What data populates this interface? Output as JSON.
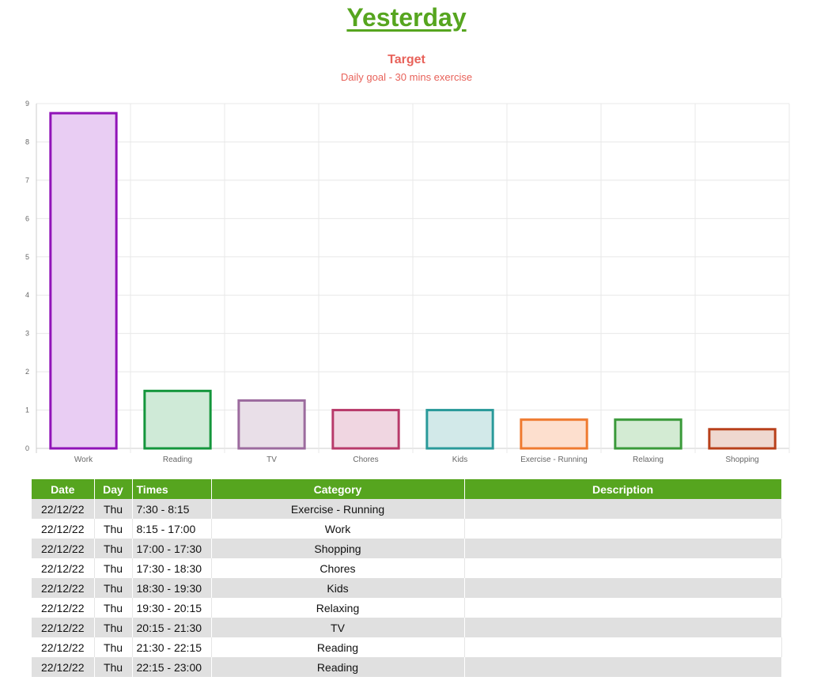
{
  "page": {
    "title": "Yesterday"
  },
  "chart_data": {
    "type": "bar",
    "title": "Target",
    "subtitle": "Daily goal - 30 mins exercise",
    "categories": [
      "Work",
      "Reading",
      "TV",
      "Chores",
      "Kids",
      "Exercise - Running",
      "Relaxing",
      "Shopping"
    ],
    "values": [
      8.75,
      1.5,
      1.25,
      1.0,
      1.0,
      0.75,
      0.75,
      0.5
    ],
    "ylim": [
      0,
      9
    ],
    "yticks": [
      0,
      1,
      2,
      3,
      4,
      5,
      6,
      7,
      8,
      9
    ],
    "grid": true,
    "legend": "none",
    "colors": {
      "border": [
        "#9013b8",
        "#14963c",
        "#9c6b9e",
        "#b83a6a",
        "#2a9a9a",
        "#ef7a30",
        "#3a9a3a",
        "#b8401a"
      ],
      "fill": [
        "#e9cdf3",
        "#cfead7",
        "#e9dfe8",
        "#f0d6e1",
        "#d2e9e9",
        "#fddfce",
        "#d3ebd3",
        "#efd8d0"
      ]
    }
  },
  "table": {
    "headers": [
      "Date",
      "Day",
      "Times",
      "Category",
      "Description"
    ],
    "rows": [
      [
        "22/12/22",
        "Thu",
        "7:30 - 8:15",
        "Exercise - Running",
        ""
      ],
      [
        "22/12/22",
        "Thu",
        "8:15 - 17:00",
        "Work",
        ""
      ],
      [
        "22/12/22",
        "Thu",
        "17:00 - 17:30",
        "Shopping",
        ""
      ],
      [
        "22/12/22",
        "Thu",
        "17:30 - 18:30",
        "Chores",
        ""
      ],
      [
        "22/12/22",
        "Thu",
        "18:30 - 19:30",
        "Kids",
        ""
      ],
      [
        "22/12/22",
        "Thu",
        "19:30 - 20:15",
        "Relaxing",
        ""
      ],
      [
        "22/12/22",
        "Thu",
        "20:15 - 21:30",
        "TV",
        ""
      ],
      [
        "22/12/22",
        "Thu",
        "21:30 - 22:15",
        "Reading",
        ""
      ],
      [
        "22/12/22",
        "Thu",
        "22:15 - 23:00",
        "Reading",
        ""
      ]
    ]
  }
}
